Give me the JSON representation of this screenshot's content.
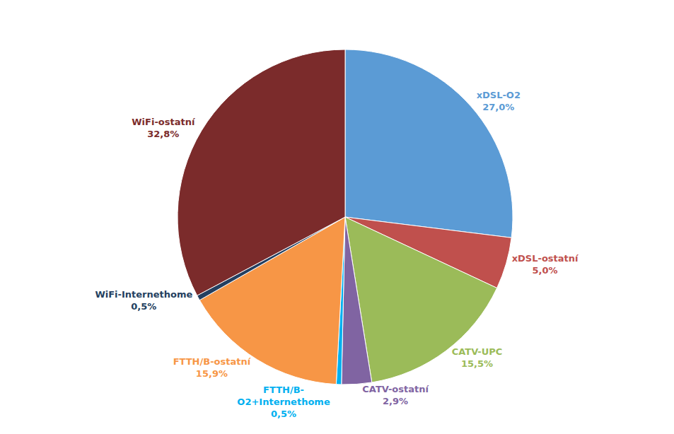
{
  "chart_data": {
    "type": "pie",
    "categories": [
      "xDSL-O2",
      "xDSL-ostatní",
      "CATV-UPC",
      "CATV-ostatní",
      "FTTH/B-\nO2+Internethome",
      "FTTH/B-ostatní",
      "WiFi-Internethome",
      "WiFi-ostatní"
    ],
    "values": [
      27.0,
      5.0,
      15.5,
      2.9,
      0.5,
      15.9,
      0.5,
      32.8
    ],
    "value_labels": [
      "27,0%",
      "5,0%",
      "15,5%",
      "2,9%",
      "0,5%",
      "15,9%",
      "0,5%",
      "32,8%"
    ],
    "colors": [
      "#5B9BD5",
      "#C0504D",
      "#9BBB59",
      "#8064A2",
      "#00B0F0",
      "#F79646",
      "#243F60",
      "#7B2B2B"
    ],
    "data_labels": true
  }
}
